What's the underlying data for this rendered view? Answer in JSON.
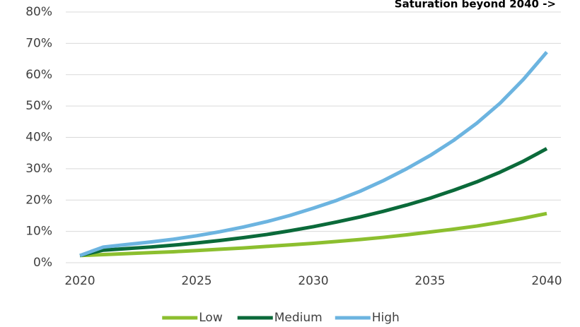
{
  "chart_data": {
    "type": "line",
    "annotation": "Saturation beyond 2040 ->",
    "x": [
      2020,
      2021,
      2022,
      2023,
      2024,
      2025,
      2026,
      2027,
      2028,
      2029,
      2030,
      2031,
      2032,
      2033,
      2034,
      2035,
      2036,
      2037,
      2038,
      2039,
      2040
    ],
    "series": [
      {
        "name": "Low",
        "color": "#8cbf2f",
        "values": [
          2.3,
          2.6,
          2.9,
          3.2,
          3.5,
          3.9,
          4.3,
          4.7,
          5.2,
          5.7,
          6.2,
          6.8,
          7.4,
          8.1,
          8.9,
          9.8,
          10.7,
          11.7,
          12.9,
          14.2,
          15.7
        ]
      },
      {
        "name": "Medium",
        "color": "#0b6a3a",
        "values": [
          2.3,
          4.0,
          4.5,
          5.0,
          5.6,
          6.3,
          7.1,
          8.0,
          9.0,
          10.2,
          11.5,
          13.0,
          14.6,
          16.4,
          18.4,
          20.6,
          23.1,
          25.8,
          28.9,
          32.4,
          36.4
        ]
      },
      {
        "name": "High",
        "color": "#6cb4e0",
        "values": [
          2.3,
          5.0,
          5.8,
          6.6,
          7.5,
          8.6,
          9.9,
          11.4,
          13.1,
          15.1,
          17.4,
          19.9,
          22.8,
          26.2,
          30.0,
          34.2,
          39.0,
          44.5,
          50.9,
          58.5,
          67.2
        ]
      }
    ],
    "xlim": [
      2020,
      2040
    ],
    "xticks": [
      2020,
      2025,
      2030,
      2035,
      2040
    ],
    "ylim": [
      0,
      80
    ],
    "yticks": [
      {
        "value": 0,
        "label": "0%"
      },
      {
        "value": 10,
        "label": "10%"
      },
      {
        "value": 20,
        "label": "20%"
      },
      {
        "value": 30,
        "label": "30%"
      },
      {
        "value": 40,
        "label": "40%"
      },
      {
        "value": 50,
        "label": "50%"
      },
      {
        "value": 60,
        "label": "60%"
      },
      {
        "value": 70,
        "label": "70%"
      },
      {
        "value": 80,
        "label": "80%"
      }
    ],
    "grid": true,
    "legend": "bottom"
  }
}
